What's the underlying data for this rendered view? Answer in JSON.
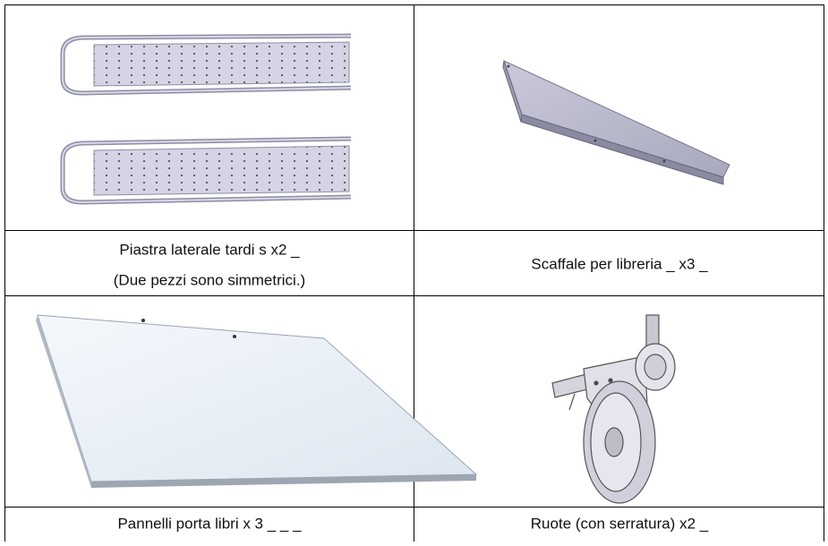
{
  "parts": [
    {
      "lines": [
        "Piastra laterale tardi s x2 _",
        "(Due pezzi sono simmetrici.)"
      ]
    },
    {
      "lines": [
        "Scaffale per libreria _ x3 _"
      ]
    },
    {
      "lines": [
        "Pannelli porta libri x 3 _ _ _"
      ]
    },
    {
      "lines": [
        "Ruote (con serratura) x2 _"
      ]
    }
  ]
}
